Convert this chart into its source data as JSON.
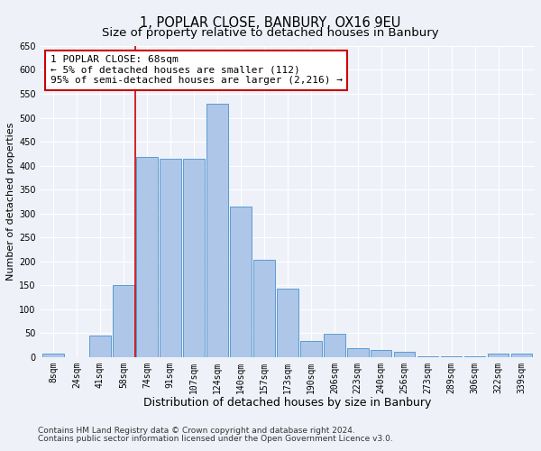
{
  "title1": "1, POPLAR CLOSE, BANBURY, OX16 9EU",
  "title2": "Size of property relative to detached houses in Banbury",
  "xlabel": "Distribution of detached houses by size in Banbury",
  "ylabel": "Number of detached properties",
  "categories": [
    "8sqm",
    "24sqm",
    "41sqm",
    "58sqm",
    "74sqm",
    "91sqm",
    "107sqm",
    "124sqm",
    "140sqm",
    "157sqm",
    "173sqm",
    "190sqm",
    "206sqm",
    "223sqm",
    "240sqm",
    "256sqm",
    "273sqm",
    "289sqm",
    "306sqm",
    "322sqm",
    "339sqm"
  ],
  "values": [
    8,
    0,
    44,
    150,
    418,
    415,
    415,
    530,
    315,
    203,
    143,
    33,
    49,
    18,
    15,
    10,
    2,
    2,
    2,
    8,
    8
  ],
  "bar_color": "#aec6e8",
  "bar_edge_color": "#5b9bd5",
  "vline_x": 3.5,
  "vline_color": "#cc0000",
  "annotation_text": "1 POPLAR CLOSE: 68sqm\n← 5% of detached houses are smaller (112)\n95% of semi-detached houses are larger (2,216) →",
  "annotation_box_color": "#ffffff",
  "annotation_box_edge_color": "#cc0000",
  "ylim": [
    0,
    650
  ],
  "yticks": [
    0,
    50,
    100,
    150,
    200,
    250,
    300,
    350,
    400,
    450,
    500,
    550,
    600,
    650
  ],
  "footer1": "Contains HM Land Registry data © Crown copyright and database right 2024.",
  "footer2": "Contains public sector information licensed under the Open Government Licence v3.0.",
  "bg_color": "#eef2f8",
  "grid_color": "#ffffff",
  "title1_fontsize": 10.5,
  "title2_fontsize": 9.5,
  "xlabel_fontsize": 9,
  "ylabel_fontsize": 8,
  "tick_fontsize": 7,
  "annotation_fontsize": 8,
  "footer_fontsize": 6.5
}
